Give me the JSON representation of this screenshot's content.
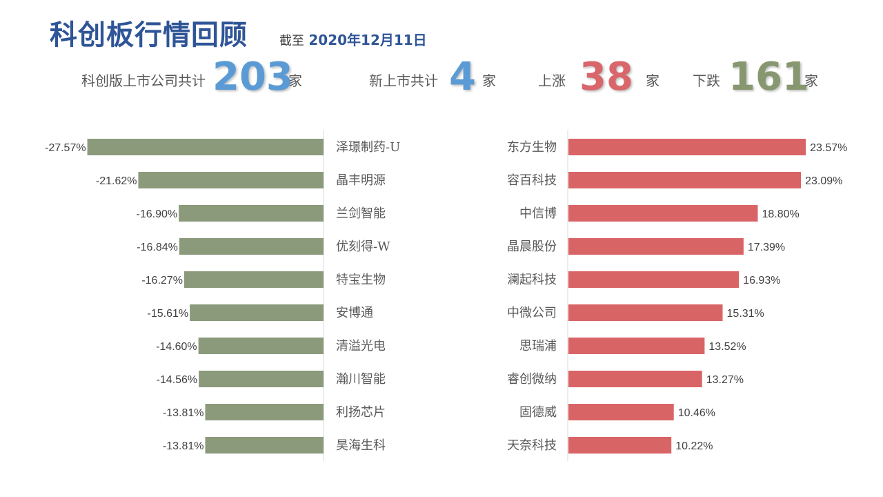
{
  "header": {
    "title": "科创板行情回顾",
    "date_prefix": "截至",
    "date_value": "2020年12月11日"
  },
  "stats": {
    "total": {
      "label": "科创版上市公司共计",
      "value": "203",
      "unit": "家",
      "color": "#5b9bd5"
    },
    "new": {
      "label": "新上市共计",
      "value": "4",
      "unit": "家",
      "color": "#5b9bd5"
    },
    "up": {
      "label": "上涨",
      "value": "38",
      "unit": "家",
      "color": "#d9666a"
    },
    "down": {
      "label": "下跌",
      "value": "161",
      "unit": "家",
      "color": "#87976f"
    }
  },
  "colors": {
    "loss": "#8a9a7b",
    "gain": "#d96466",
    "axis": "#d9d9d9",
    "text": "#404040"
  },
  "chart_data": [
    {
      "type": "bar",
      "orientation": "horizontal",
      "categories": [
        "泽璟制药-U",
        "晶丰明源",
        "兰剑智能",
        "优刻得-W",
        "特宝生物",
        "安博通",
        "清溢光电",
        "瀚川智能",
        "利扬芯片",
        "昊海生科"
      ],
      "values": [
        -27.57,
        -21.62,
        -16.9,
        -16.84,
        -16.27,
        -15.61,
        -14.6,
        -14.56,
        -13.81,
        -13.81
      ],
      "labels": [
        "-27.57%",
        "-21.62%",
        "-16.90%",
        "-16.84%",
        "-16.27%",
        "-15.61%",
        "-14.60%",
        "-14.56%",
        "-13.81%",
        "-13.81%"
      ],
      "xlim": [
        -28,
        0
      ]
    },
    {
      "type": "bar",
      "orientation": "horizontal",
      "categories": [
        "东方生物",
        "容百科技",
        "中信博",
        "晶晨股份",
        "澜起科技",
        "中微公司",
        "思瑞浦",
        "睿创微纳",
        "固德威",
        "天奈科技"
      ],
      "values": [
        23.57,
        23.09,
        18.8,
        17.39,
        16.93,
        15.31,
        13.52,
        13.27,
        10.46,
        10.22
      ],
      "labels": [
        "23.57%",
        "23.09%",
        "18.80%",
        "17.39%",
        "16.93%",
        "15.31%",
        "13.52%",
        "13.27%",
        "10.46%",
        "10.22%"
      ],
      "xlim": [
        0,
        24
      ]
    }
  ]
}
